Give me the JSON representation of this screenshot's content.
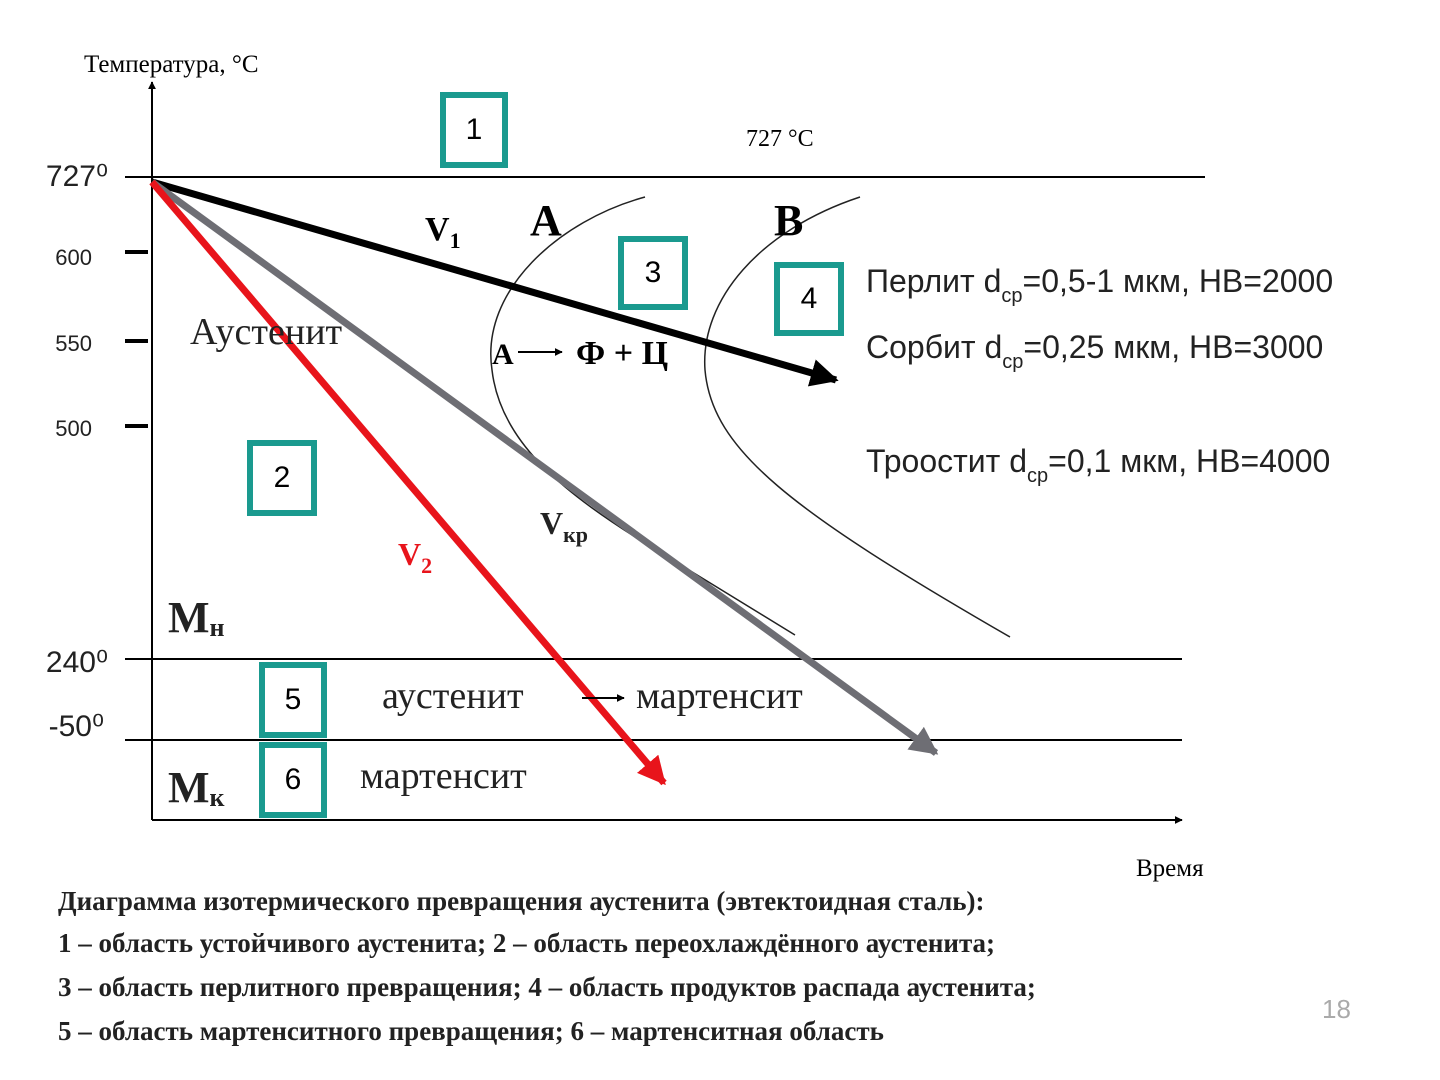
{
  "axes": {
    "y_label": "Температура, °C",
    "x_label": "Время",
    "y_ticks": [
      "727⁰",
      "600",
      "550",
      "500",
      "240⁰",
      "-50⁰"
    ]
  },
  "annotation_727": "727 °C",
  "regions": [
    "1",
    "2",
    "3",
    "4",
    "5",
    "6"
  ],
  "curves": {
    "a": "А",
    "b": "В"
  },
  "rates": {
    "v1": {
      "main": "V",
      "sub": "1"
    },
    "v2": {
      "main": "V",
      "sub": "2"
    },
    "vkr": {
      "main": "V",
      "sub": "кр"
    }
  },
  "phases": {
    "austenite": "Аустенит",
    "transform_from": "А",
    "transform_to": "Ф + Ц",
    "mn": {
      "main": "М",
      "sub": "н"
    },
    "mk": {
      "main": "М",
      "sub": "к"
    },
    "austenite_low": "аустенит",
    "martensite_low": "мартенсит",
    "martensite": "мартенсит"
  },
  "products": [
    {
      "name": "Перлит d",
      "sub": "ср",
      "props": "=0,5-1 мкм, НВ=2000"
    },
    {
      "name": "Сорбит d",
      "sub": "ср",
      "props": "=0,25 мкм, НВ=3000"
    },
    {
      "name": "Троостит d",
      "sub": "ср",
      "props": "=0,1 мкм, НВ=4000"
    }
  ],
  "caption": [
    "Диаграмма изотермического превращения аустенита (эвтектоидная сталь):",
    "1 – область устойчивого аустенита; 2 – область переохлаждённого аустенита;",
    "3 – область перлитного превращения; 4 – область продуктов распада аустенита;",
    "5 – область мартенситного превращения; 6 – мартенситная область"
  ],
  "page_number": "18"
}
